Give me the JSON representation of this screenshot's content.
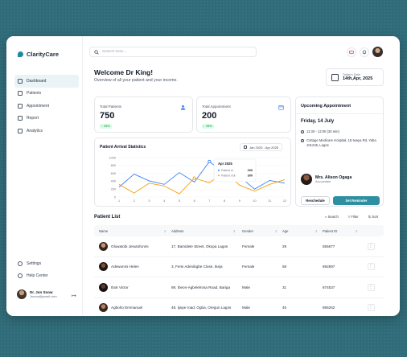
{
  "app": {
    "name": "ClarityCare"
  },
  "sidebar": {
    "items": [
      {
        "label": "Dashboard",
        "icon": "grid-icon",
        "active": true
      },
      {
        "label": "Patients",
        "icon": "users-icon"
      },
      {
        "label": "Appointment",
        "icon": "calendar-icon"
      },
      {
        "label": "Report",
        "icon": "document-icon"
      },
      {
        "label": "Analytics",
        "icon": "chart-icon"
      }
    ],
    "bottom": [
      {
        "label": "Settings",
        "icon": "gear-icon"
      },
      {
        "label": "Help Center",
        "icon": "headset-icon"
      }
    ],
    "user": {
      "name": "Dr. Jon Snow",
      "email": "Jsnow@gmail.com"
    }
  },
  "search": {
    "placeholder": "Search here..."
  },
  "welcome": {
    "title": "Welcome Dr King!",
    "subtitle": "Overview of all your patient and your income."
  },
  "today": {
    "label": "Today's Date",
    "value": "14th,Apr, 2025"
  },
  "stats": [
    {
      "label": "Total Patients",
      "value": "750",
      "change": "↑ 25%"
    },
    {
      "label": "Total Appointment",
      "value": "200",
      "change": "↑ 25%"
    }
  ],
  "appointment": {
    "title": "Upcoming Appointment",
    "date": "Friday, 14 July",
    "time": "11:30 - 12:00 (30 min)",
    "location": "Cottage Medicare Hospital, 18 Iwaya Rd, Yaba 101245, Lagos",
    "doctor": "Mrs. Alison Ogaga",
    "role": "Accountant",
    "reschedule": "Reschedule",
    "reminder": "Set Reminder"
  },
  "chart_card": {
    "title": "Patient Arrival Statistics",
    "range": "Jan 2025 - Apr 2025"
  },
  "chart_data": {
    "type": "line",
    "x": [
      1,
      2,
      3,
      4,
      5,
      6,
      7,
      8,
      9,
      10,
      11,
      12
    ],
    "ylim": [
      0,
      1000
    ],
    "yticks": [
      0,
      200,
      400,
      600,
      800,
      1000
    ],
    "series": [
      {
        "name": "Patient In",
        "color": "#3b82f6",
        "values": [
          250,
          580,
          410,
          320,
          620,
          380,
          900,
          600,
          520,
          200,
          420,
          350
        ]
      },
      {
        "name": "Patient Out",
        "color": "#f59e0b",
        "values": [
          320,
          100,
          350,
          280,
          80,
          480,
          360,
          650,
          300,
          150,
          320,
          440
        ]
      }
    ],
    "tooltip": {
      "title": "Apr 2025",
      "rows": [
        {
          "label": "Patient In",
          "value": "200"
        },
        {
          "label": "Patient Out",
          "value": "300"
        }
      ]
    }
  },
  "patient_list": {
    "title": "Patient List",
    "actions": [
      "Search",
      "Filter",
      "Sort"
    ],
    "columns": [
      "Name",
      "Address",
      "Gender",
      "Age",
      "Patient ID"
    ],
    "rows": [
      {
        "name": "Oluwatobi Jesutofunmi",
        "address": "17, Bamidele Street, Okopa Lagos",
        "gender": "Female",
        "age": "29",
        "id": "555677"
      },
      {
        "name": "Adewunmi Helen",
        "address": "3, Femi Adenibgbe Close, Ikeja",
        "gender": "Female",
        "age": "58",
        "id": "892897"
      },
      {
        "name": "Ibok Victor",
        "address": "89, Ibeon-Agbelelrosa Road, Bariga",
        "gender": "Male",
        "age": "31",
        "id": "874537"
      },
      {
        "name": "Agboho Emmanuel",
        "address": "48, Ijaiye road, Ogba, Oregun Lagos",
        "gender": "Male",
        "age": "45",
        "id": "856262"
      }
    ]
  }
}
